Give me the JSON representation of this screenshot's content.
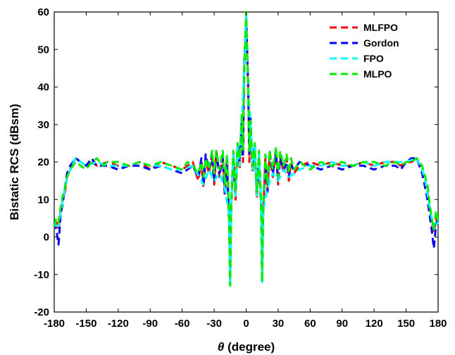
{
  "chart_data": {
    "type": "line",
    "title": "",
    "xlabel_symbol": "θ",
    "xlabel_rest": " (degree)",
    "ylabel": "Bistatic RCS (dBsm)",
    "xlim": [
      -180,
      180
    ],
    "ylim": [
      -20,
      60
    ],
    "xticks": [
      "-180",
      "-150",
      "-120",
      "-90",
      "-60",
      "-30",
      "0",
      "30",
      "60",
      "90",
      "120",
      "150",
      "180"
    ],
    "xtick_values": [
      -180,
      -150,
      -120,
      -90,
      -60,
      -30,
      0,
      30,
      60,
      90,
      120,
      150,
      180
    ],
    "yticks": [
      "-20",
      "-10",
      "0",
      "10",
      "20",
      "30",
      "40",
      "50",
      "60"
    ],
    "ytick_values": [
      -20,
      -10,
      0,
      10,
      20,
      30,
      40,
      50,
      60
    ],
    "grid": false,
    "legend_position": "top-right",
    "series": [
      {
        "name": "MLFPO",
        "color": "#ff0000",
        "dash": "dashed",
        "x": [
          -180,
          -178,
          -176,
          -174,
          -172,
          -170,
          -168,
          -165,
          -160,
          -155,
          -150,
          -145,
          -140,
          -130,
          -120,
          -110,
          -100,
          -90,
          -80,
          -70,
          -60,
          -50,
          -45,
          -42,
          -40,
          -38,
          -35,
          -32,
          -30,
          -28,
          -25,
          -22,
          -20,
          -18,
          -16,
          -15,
          -14,
          -12,
          -10,
          -8,
          -6,
          -4,
          -3,
          -2,
          -1,
          0,
          1,
          2,
          3,
          4,
          6,
          8,
          10,
          12,
          14,
          15,
          16,
          18,
          20,
          22,
          25,
          28,
          30,
          32,
          35,
          38,
          40,
          42,
          45,
          50,
          60,
          70,
          80,
          90,
          100,
          110,
          120,
          130,
          140,
          145,
          150,
          155,
          160,
          165,
          168,
          170,
          172,
          174,
          176,
          178,
          180
        ],
        "y": [
          3,
          5,
          2,
          7,
          10,
          12,
          16,
          18,
          21,
          20,
          19,
          20,
          19,
          20,
          19,
          19,
          20,
          18,
          20,
          19,
          18,
          20,
          15,
          20,
          13,
          21,
          17,
          22,
          14,
          23,
          16,
          22,
          12,
          21,
          5,
          -12,
          8,
          22,
          10,
          24,
          18,
          30,
          20,
          42,
          50,
          59,
          48,
          38,
          20,
          30,
          17,
          24,
          10,
          22,
          8,
          -11,
          6,
          21,
          13,
          22,
          16,
          23,
          14,
          22,
          17,
          21,
          15,
          20,
          17,
          19,
          20,
          19,
          20,
          19,
          19,
          20,
          19,
          20,
          20,
          19,
          20,
          20,
          21,
          18,
          15,
          12,
          8,
          4,
          1,
          5,
          3
        ]
      },
      {
        "name": "Gordon",
        "color": "#0000ff",
        "dash": "dashed",
        "x": [
          -180,
          -178,
          -176,
          -174,
          -172,
          -170,
          -168,
          -165,
          -160,
          -155,
          -150,
          -145,
          -140,
          -130,
          -120,
          -110,
          -100,
          -90,
          -80,
          -70,
          -60,
          -50,
          -45,
          -42,
          -40,
          -38,
          -35,
          -32,
          -30,
          -28,
          -25,
          -22,
          -20,
          -18,
          -16,
          -15,
          -14,
          -12,
          -10,
          -8,
          -6,
          -4,
          -3,
          -2,
          -1,
          0,
          1,
          2,
          3,
          4,
          6,
          8,
          10,
          12,
          14,
          15,
          16,
          18,
          20,
          22,
          25,
          28,
          30,
          32,
          35,
          38,
          40,
          42,
          45,
          50,
          60,
          70,
          80,
          90,
          100,
          110,
          120,
          130,
          140,
          145,
          150,
          155,
          160,
          165,
          168,
          170,
          172,
          174,
          176,
          178,
          180
        ],
        "y": [
          4,
          2,
          -2,
          6,
          9,
          13,
          17,
          19,
          21,
          20,
          19,
          21,
          19,
          19,
          18,
          19,
          19,
          18,
          19,
          18,
          17,
          19,
          16,
          21,
          14,
          22,
          18,
          21,
          15,
          22,
          17,
          21,
          11,
          20,
          4,
          -13,
          9,
          21,
          11,
          25,
          20,
          32,
          22,
          45,
          52,
          59,
          50,
          40,
          22,
          32,
          18,
          25,
          11,
          21,
          9,
          -12,
          7,
          20,
          12,
          23,
          17,
          22,
          15,
          21,
          18,
          20,
          16,
          19,
          18,
          20,
          19,
          18,
          19,
          18,
          19,
          19,
          18,
          19,
          19,
          18,
          20,
          21,
          21,
          17,
          13,
          10,
          6,
          2,
          -3,
          3,
          5
        ]
      },
      {
        "name": "FPO",
        "color": "#00ffff",
        "dash": "dashed",
        "x": [
          -180,
          -176,
          -172,
          -168,
          -165,
          -160,
          -150,
          -140,
          -130,
          -120,
          -110,
          -100,
          -90,
          -80,
          -70,
          -60,
          -50,
          -40,
          -35,
          -30,
          -25,
          -20,
          -16,
          -15,
          -14,
          -12,
          -10,
          -8,
          -6,
          -4,
          -2,
          -1,
          0,
          1,
          2,
          4,
          6,
          8,
          10,
          12,
          14,
          15,
          16,
          20,
          25,
          30,
          35,
          40,
          50,
          60,
          70,
          80,
          90,
          100,
          110,
          120,
          130,
          140,
          150,
          160,
          165,
          168,
          172,
          176,
          180
        ],
        "y": [
          3,
          3,
          10,
          16,
          18,
          21,
          19,
          20,
          19,
          19,
          19,
          20,
          19,
          19,
          18,
          18,
          19,
          14,
          18,
          15,
          17,
          13,
          6,
          -13,
          9,
          22,
          11,
          24,
          19,
          31,
          43,
          51,
          59,
          49,
          39,
          31,
          18,
          24,
          11,
          22,
          9,
          -12,
          7,
          13,
          17,
          15,
          18,
          16,
          18,
          19,
          19,
          20,
          19,
          19,
          20,
          19,
          20,
          20,
          20,
          21,
          18,
          15,
          8,
          2,
          4
        ]
      },
      {
        "name": "MLPO",
        "color": "#00ee00",
        "dash": "dashed",
        "x": [
          -180,
          -178,
          -176,
          -174,
          -172,
          -170,
          -168,
          -165,
          -160,
          -155,
          -150,
          -145,
          -140,
          -135,
          -130,
          -120,
          -110,
          -100,
          -90,
          -80,
          -70,
          -60,
          -55,
          -50,
          -45,
          -42,
          -40,
          -38,
          -35,
          -32,
          -30,
          -28,
          -25,
          -22,
          -20,
          -18,
          -16,
          -15,
          -14,
          -12,
          -10,
          -8,
          -6,
          -4,
          -3,
          -2,
          -1,
          0,
          1,
          2,
          3,
          4,
          6,
          8,
          10,
          12,
          14,
          15,
          16,
          18,
          20,
          22,
          25,
          28,
          30,
          32,
          35,
          38,
          40,
          42,
          45,
          50,
          55,
          60,
          70,
          80,
          90,
          100,
          110,
          120,
          130,
          140,
          145,
          150,
          155,
          160,
          165,
          168,
          170,
          172,
          174,
          176,
          178,
          180
        ],
        "y": [
          3,
          5,
          4,
          8,
          11,
          13,
          16,
          18,
          20,
          19,
          18,
          20,
          21,
          19,
          20,
          20,
          19,
          20,
          19,
          20,
          19,
          18,
          20,
          19,
          17,
          20,
          16,
          21,
          18,
          23,
          17,
          23,
          18,
          23,
          14,
          22,
          7,
          -13,
          10,
          23,
          12,
          25,
          21,
          33,
          23,
          44,
          51,
          60,
          49,
          39,
          23,
          31,
          19,
          25,
          12,
          23,
          10,
          -12,
          8,
          22,
          14,
          23,
          18,
          24,
          16,
          23,
          19,
          22,
          17,
          21,
          18,
          20,
          19,
          18,
          20,
          19,
          20,
          19,
          20,
          20,
          19,
          20,
          19,
          20,
          20,
          21,
          19,
          16,
          14,
          9,
          5,
          2,
          7,
          4
        ]
      }
    ]
  }
}
